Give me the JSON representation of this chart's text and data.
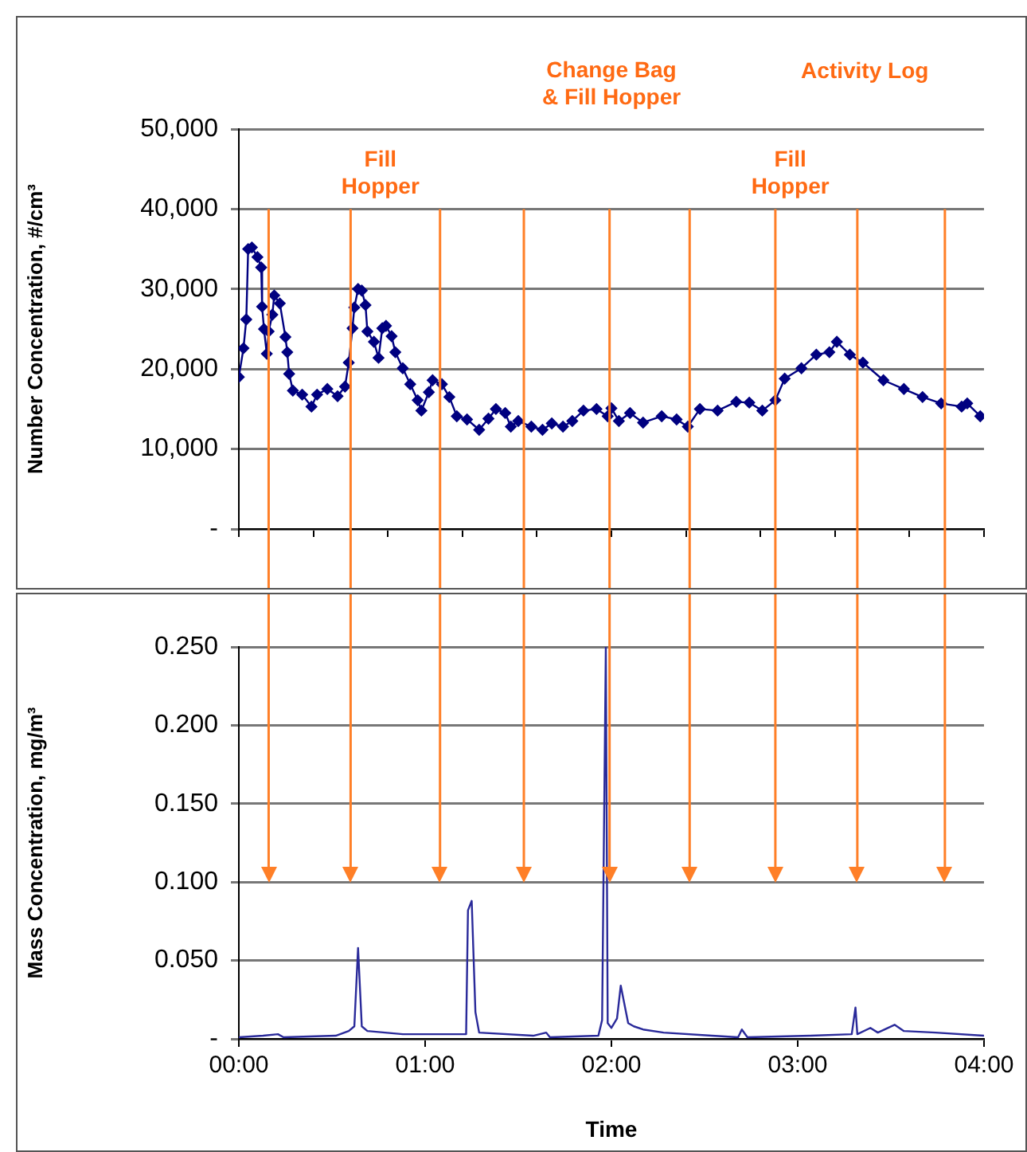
{
  "chart_data": [
    {
      "type": "line",
      "ylabel": "Number Concentration, #/cm³",
      "xlim": [
        0,
        4
      ],
      "xticks": [
        {
          "value": 0,
          "label": null
        },
        {
          "value": 0.4,
          "label": null
        },
        {
          "value": 0.8,
          "label": null
        },
        {
          "value": 1.2,
          "label": null
        },
        {
          "value": 1.6,
          "label": null
        },
        {
          "value": 2.0,
          "label": null
        },
        {
          "value": 2.4,
          "label": null
        },
        {
          "value": 2.8,
          "label": null
        },
        {
          "value": 3.2,
          "label": null
        },
        {
          "value": 3.6,
          "label": null
        },
        {
          "value": 4.0,
          "label": null
        }
      ],
      "ylim": [
        0,
        50000
      ],
      "yticks": [
        {
          "value": 0,
          "label": "-"
        },
        {
          "value": 10000,
          "label": "10,000"
        },
        {
          "value": 20000,
          "label": "20,000"
        },
        {
          "value": 30000,
          "label": "30,000"
        },
        {
          "value": 40000,
          "label": "40,000"
        },
        {
          "value": 50000,
          "label": "50,000"
        }
      ],
      "tick_labels": "y",
      "grid": "y",
      "marker": "diamond",
      "line_style": "solid",
      "x": [
        0.0,
        0.025,
        0.04,
        0.05,
        0.07,
        0.1,
        0.12,
        0.125,
        0.135,
        0.15,
        0.16,
        0.18,
        0.19,
        0.22,
        0.25,
        0.26,
        0.27,
        0.29,
        0.34,
        0.39,
        0.42,
        0.475,
        0.53,
        0.57,
        0.59,
        0.61,
        0.62,
        0.64,
        0.66,
        0.68,
        0.69,
        0.725,
        0.75,
        0.77,
        0.79,
        0.82,
        0.84,
        0.88,
        0.92,
        0.96,
        0.98,
        1.02,
        1.04,
        1.09,
        1.13,
        1.17,
        1.225,
        1.29,
        1.34,
        1.38,
        1.43,
        1.46,
        1.5,
        1.57,
        1.63,
        1.68,
        1.74,
        1.79,
        1.85,
        1.92,
        1.98,
        2.0,
        2.04,
        2.1,
        2.17,
        2.27,
        2.35,
        2.41,
        2.475,
        2.57,
        2.67,
        2.74,
        2.81,
        2.88,
        2.93,
        3.02,
        3.1,
        3.17,
        3.21,
        3.28,
        3.35,
        3.46,
        3.57,
        3.67,
        3.77,
        3.88,
        3.91,
        3.98
      ],
      "series": [
        {
          "color": "#000080",
          "values": [
            19000,
            22600,
            26200,
            35000,
            35200,
            34000,
            32700,
            27800,
            25000,
            21900,
            24700,
            26800,
            29200,
            28200,
            24000,
            22100,
            19400,
            17300,
            16800,
            15300,
            16800,
            17500,
            16600,
            17800,
            20800,
            25100,
            27700,
            30000,
            29800,
            28000,
            24700,
            23400,
            21400,
            25100,
            25400,
            24100,
            22100,
            20100,
            18100,
            16100,
            14800,
            17100,
            18600,
            18100,
            16500,
            14100,
            13700,
            12400,
            13800,
            15000,
            14500,
            12800,
            13500,
            12800,
            12400,
            13200,
            12800,
            13500,
            14800,
            15000,
            14100,
            15100,
            13500,
            14500,
            13300,
            14100,
            13700,
            12800,
            15000,
            14800,
            15900,
            15800,
            14800,
            16100,
            18800,
            20100,
            21800,
            22100,
            23400,
            21800,
            20800,
            18600,
            17500,
            16500,
            15700,
            15300,
            15700,
            14100
          ]
        }
      ],
      "ref_lines": [
        {
          "axis": "x",
          "value": 0.16,
          "color": "#ff7f27"
        },
        {
          "axis": "x",
          "value": 0.6,
          "color": "#ff7f27"
        },
        {
          "axis": "x",
          "value": 1.08,
          "color": "#ff7f27"
        },
        {
          "axis": "x",
          "value": 1.53,
          "color": "#ff7f27"
        },
        {
          "axis": "x",
          "value": 1.99,
          "color": "#ff7f27"
        },
        {
          "axis": "x",
          "value": 2.42,
          "color": "#ff7f27"
        },
        {
          "axis": "x",
          "value": 2.88,
          "color": "#ff7f27"
        },
        {
          "axis": "x",
          "value": 3.32,
          "color": "#ff7f27"
        },
        {
          "axis": "x",
          "value": 3.79,
          "color": "#ff7f27"
        }
      ],
      "annotations": [
        "Fill\nHopper",
        "Change Bag\n& Fill Hopper",
        "Activity Log",
        "Fill\nHopper"
      ]
    },
    {
      "type": "line",
      "xlabel": "Time",
      "ylabel": "Mass Concentration, mg/m³",
      "xlim": [
        0,
        4
      ],
      "xticks": [
        {
          "value": 0,
          "label": "00:00"
        },
        {
          "value": 1,
          "label": "01:00"
        },
        {
          "value": 2,
          "label": "02:00"
        },
        {
          "value": 3,
          "label": "03:00"
        },
        {
          "value": 4,
          "label": "04:00"
        }
      ],
      "ylim": [
        0,
        0.25
      ],
      "yticks": [
        {
          "value": 0,
          "label": "-"
        },
        {
          "value": 0.05,
          "label": "0.050"
        },
        {
          "value": 0.1,
          "label": "0.100"
        },
        {
          "value": 0.15,
          "label": "0.150"
        },
        {
          "value": 0.2,
          "label": "0.200"
        },
        {
          "value": 0.25,
          "label": "0.250"
        }
      ],
      "grid": "y",
      "marker": "none",
      "line_style": "solid",
      "x": [
        0,
        0.13,
        0.21,
        0.24,
        0.52,
        0.59,
        0.62,
        0.64,
        0.66,
        0.69,
        0.88,
        0.97,
        1.22,
        1.23,
        1.25,
        1.27,
        1.29,
        1.58,
        1.65,
        1.67,
        1.93,
        1.95,
        1.97,
        1.98,
        2.0,
        2.03,
        2.05,
        2.09,
        2.12,
        2.17,
        2.28,
        2.54,
        2.68,
        2.7,
        2.73,
        3.07,
        3.29,
        3.31,
        3.32,
        3.39,
        3.43,
        3.52,
        3.57,
        3.74,
        4.0
      ],
      "series": [
        {
          "color": "#2a2a9a",
          "values": [
            0.001,
            0.002,
            0.003,
            0.001,
            0.002,
            0.005,
            0.008,
            0.058,
            0.008,
            0.005,
            0.003,
            0.003,
            0.003,
            0.082,
            0.088,
            0.017,
            0.004,
            0.002,
            0.004,
            0.001,
            0.002,
            0.012,
            0.25,
            0.01,
            0.007,
            0.013,
            0.034,
            0.01,
            0.008,
            0.006,
            0.004,
            0.002,
            0.001,
            0.006,
            0.001,
            0.002,
            0.003,
            0.02,
            0.003,
            0.007,
            0.004,
            0.009,
            0.005,
            0.004,
            0.002
          ]
        }
      ],
      "ref_lines": [
        {
          "axis": "x",
          "value": 0.16,
          "color": "#ff7f27"
        },
        {
          "axis": "x",
          "value": 0.6,
          "color": "#ff7f27"
        },
        {
          "axis": "x",
          "value": 1.08,
          "color": "#ff7f27"
        },
        {
          "axis": "x",
          "value": 1.53,
          "color": "#ff7f27"
        },
        {
          "axis": "x",
          "value": 1.99,
          "color": "#ff7f27"
        },
        {
          "axis": "x",
          "value": 2.42,
          "color": "#ff7f27"
        },
        {
          "axis": "x",
          "value": 2.88,
          "color": "#ff7f27"
        },
        {
          "axis": "x",
          "value": 3.32,
          "color": "#ff7f27"
        },
        {
          "axis": "x",
          "value": 3.79,
          "color": "#ff7f27"
        }
      ]
    }
  ]
}
